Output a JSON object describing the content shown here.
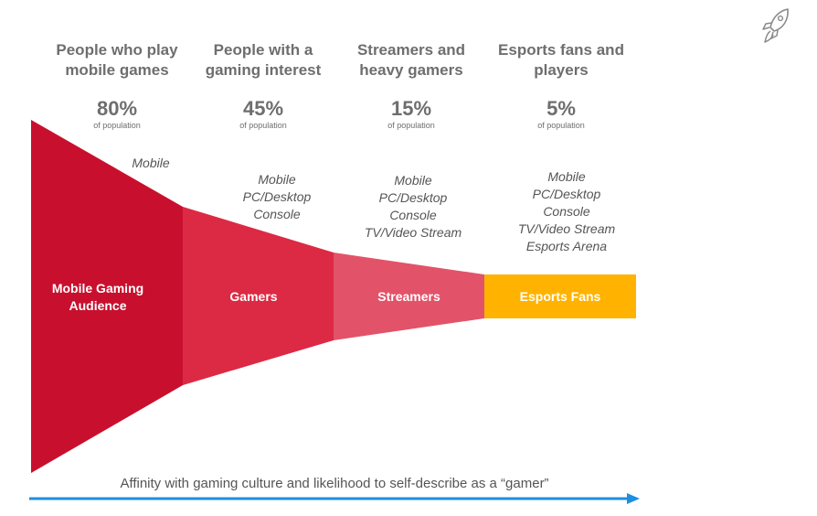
{
  "columns": [
    {
      "title_line1": "People who play",
      "title_line2": "mobile games",
      "percent": "80%",
      "sub": "of population"
    },
    {
      "title_line1": "People with a",
      "title_line2": "gaming interest",
      "percent": "45%",
      "sub": "of population"
    },
    {
      "title_line1": "Streamers and",
      "title_line2": "heavy gamers",
      "percent": "15%",
      "sub": "of population"
    },
    {
      "title_line1": "Esports fans and",
      "title_line2": "players",
      "percent": "5%",
      "sub": "of population"
    }
  ],
  "platforms": [
    [
      "Mobile"
    ],
    [
      "Mobile",
      "PC/Desktop",
      "Console"
    ],
    [
      "Mobile",
      "PC/Desktop",
      "Console",
      "TV/Video Stream"
    ],
    [
      "Mobile",
      "PC/Desktop",
      "Console",
      "TV/Video Stream",
      "Esports Arena"
    ]
  ],
  "segments": [
    {
      "line1": "Mobile Gaming",
      "line2": "Audience",
      "color": "#c8102e"
    },
    {
      "line1": "Gamers",
      "color": "#dc2a44"
    },
    {
      "line1": "Streamers",
      "color": "#e2536a"
    },
    {
      "line1": "Esports Fans",
      "color": "#ffb300"
    }
  ],
  "axis": {
    "label": "Affinity with gaming culture and likelihood to self-describe as a “gamer”",
    "color": "#1e8ee0"
  },
  "logo": {
    "icon": "rocket-icon"
  }
}
